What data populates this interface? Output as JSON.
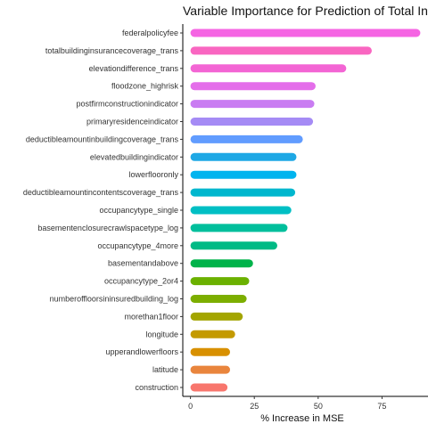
{
  "chart_data": {
    "type": "bar",
    "orientation": "horizontal",
    "title": "Variable Importance for Prediction of Total Insurance",
    "xlabel": "% Increase in MSE",
    "ylabel": "",
    "xlim": [
      -3,
      93
    ],
    "xticks": [
      0,
      25,
      50,
      75
    ],
    "xtick_labels": [
      "0",
      "25",
      "50",
      "75"
    ],
    "grid": false,
    "legend": "none",
    "categories": [
      "federalpolicyfee",
      "totalbuildinginsurancecoverage_trans",
      "elevationdifference_trans",
      "floodzone_highrisk",
      "postfirmconstructionindicator",
      "primaryresidenceindicator",
      "deductibleamountinbuildingcoverage_trans",
      "elevatedbuildingindicator",
      "lowerflooronly",
      "deductibleamountincontentscoverage_trans",
      "occupancytype_single",
      "basementenclosurecrawlspacetype_log",
      "occupancytype_4more",
      "basementandabove",
      "occupancytype_2or4",
      "numberoffloorsininsuredbuilding_log",
      "morethan1floor",
      "longitude",
      "upperandlowerfloors",
      "latitude",
      "construction"
    ],
    "values": [
      90,
      71,
      61,
      49,
      48.5,
      48,
      44,
      41.5,
      41.5,
      41,
      39.5,
      38,
      34,
      24.5,
      23,
      22,
      20.5,
      17.5,
      15.5,
      15.5,
      14.5
    ],
    "colors": [
      "#F564E3",
      "#F966C1",
      "#F365D4",
      "#E46EEA",
      "#C97CF2",
      "#A58BF5",
      "#619CFF",
      "#1FA8E5",
      "#00B4EF",
      "#00B7CE",
      "#00BFC4",
      "#00BF9C",
      "#00BA85",
      "#00B34A",
      "#6BB100",
      "#7CAE00",
      "#A3A500",
      "#C49A00",
      "#D89000",
      "#E9853D",
      "#F8766D"
    ]
  }
}
